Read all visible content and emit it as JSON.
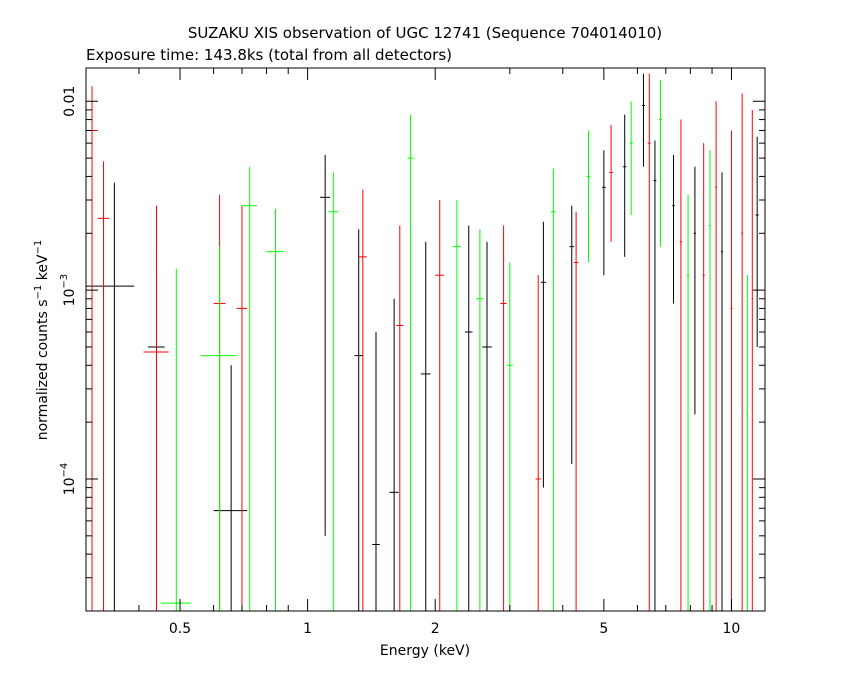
{
  "chart_data": {
    "type": "scatter",
    "title": "SUZAKU XIS observation of UGC 12741 (Sequence 704014010)",
    "subtitle": "Exposure time: 143.8ks (total from all detectors)",
    "xlabel": "Energy (keV)",
    "ylabel": "normalized counts s",
    "ylabel_parts": [
      "normalized counts s",
      "−1",
      " keV",
      "−1"
    ],
    "x_scale": "log",
    "y_scale": "log",
    "xlim": [
      0.3,
      12
    ],
    "ylim": [
      2e-05,
      0.015
    ],
    "x_ticks": [
      {
        "value": 0.5,
        "label": "0.5"
      },
      {
        "value": 1,
        "label": "1"
      },
      {
        "value": 2,
        "label": "2"
      },
      {
        "value": 5,
        "label": "5"
      },
      {
        "value": 10,
        "label": "10"
      }
    ],
    "y_ticks": [
      {
        "value": 0.0001,
        "base": "10",
        "exp": "−4",
        "text": ""
      },
      {
        "value": 0.001,
        "base": "10",
        "exp": "−3",
        "text": ""
      },
      {
        "value": 0.01,
        "base": "",
        "exp": "",
        "text": "0.01"
      }
    ],
    "series": [
      {
        "color": "#000000",
        "points": [
          {
            "x": 0.35,
            "y": 0.00105,
            "xl": 0.3,
            "xh": 0.39,
            "yl": 2e-05,
            "yh": 0.0037
          },
          {
            "x": 0.44,
            "y": 0.0005,
            "xl": 0.42,
            "xh": 0.46,
            "yl": 2e-05,
            "yh": 0.0017
          },
          {
            "x": 0.66,
            "y": 6.8e-05,
            "xl": 0.6,
            "xh": 0.72,
            "yl": 2e-05,
            "yh": 0.0004
          },
          {
            "x": 1.1,
            "y": 0.0031,
            "xl": 1.07,
            "xh": 1.13,
            "yl": 5e-05,
            "yh": 0.0052
          },
          {
            "x": 1.32,
            "y": 0.00045,
            "xl": 1.29,
            "xh": 1.35,
            "yl": 2e-05,
            "yh": 0.0021
          },
          {
            "x": 1.45,
            "y": 4.5e-05,
            "xl": 1.42,
            "xh": 1.48,
            "yl": 2e-05,
            "yh": 0.0006
          },
          {
            "x": 1.6,
            "y": 8.5e-05,
            "xl": 1.56,
            "xh": 1.64,
            "yl": 2e-05,
            "yh": 0.0009
          },
          {
            "x": 1.9,
            "y": 0.00036,
            "xl": 1.85,
            "xh": 1.95,
            "yl": 2e-05,
            "yh": 0.0018
          },
          {
            "x": 2.4,
            "y": 0.0006,
            "xl": 2.35,
            "xh": 2.45,
            "yl": 2e-05,
            "yh": 0.0022
          },
          {
            "x": 2.65,
            "y": 0.0005,
            "xl": 2.58,
            "xh": 2.72,
            "yl": 2e-05,
            "yh": 0.0018
          },
          {
            "x": 3.6,
            "y": 0.0011,
            "xl": 3.55,
            "xh": 3.65,
            "yl": 9e-05,
            "yh": 0.0023
          },
          {
            "x": 4.2,
            "y": 0.0017,
            "xl": 4.15,
            "xh": 4.25,
            "yl": 0.00012,
            "yh": 0.0028
          },
          {
            "x": 5.0,
            "y": 0.0035,
            "xl": 4.95,
            "xh": 5.05,
            "yl": 0.0012,
            "yh": 0.0055
          },
          {
            "x": 5.6,
            "y": 0.0045,
            "xl": 5.55,
            "xh": 5.65,
            "yl": 0.0015,
            "yh": 0.0085
          },
          {
            "x": 6.2,
            "y": 0.0095,
            "xl": 6.15,
            "xh": 6.25,
            "yl": 0.0045,
            "yh": 0.014
          },
          {
            "x": 6.6,
            "y": 0.0038,
            "xl": 6.55,
            "xh": 6.65,
            "yl": 2e-05,
            "yh": 0.0062
          },
          {
            "x": 7.3,
            "y": 0.0028,
            "xl": 7.25,
            "xh": 7.35,
            "yl": 0.00085,
            "yh": 0.0052
          },
          {
            "x": 8.2,
            "y": 0.002,
            "xl": 8.15,
            "xh": 8.25,
            "yl": 0.00022,
            "yh": 0.0045
          },
          {
            "x": 9.5,
            "y": 0.0016,
            "xl": 9.45,
            "xh": 9.55,
            "yl": 2e-05,
            "yh": 0.0042
          },
          {
            "x": 11.5,
            "y": 0.0025,
            "xl": 11.4,
            "xh": 11.6,
            "yl": 0.0005,
            "yh": 0.0065
          }
        ]
      },
      {
        "color": "#ff0000",
        "points": [
          {
            "x": 0.31,
            "y": 0.007,
            "xl": 0.3,
            "xh": 0.32,
            "yl": 2e-05,
            "yh": 0.012
          },
          {
            "x": 0.33,
            "y": 0.0024,
            "xl": 0.32,
            "xh": 0.34,
            "yl": 2e-05,
            "yh": 0.0048
          },
          {
            "x": 0.44,
            "y": 0.00047,
            "xl": 0.41,
            "xh": 0.47,
            "yl": 2e-05,
            "yh": 0.0028
          },
          {
            "x": 0.62,
            "y": 0.00085,
            "xl": 0.6,
            "xh": 0.64,
            "yl": 2e-05,
            "yh": 0.0032
          },
          {
            "x": 0.7,
            "y": 0.0008,
            "xl": 0.68,
            "xh": 0.72,
            "yl": 2e-05,
            "yh": 0.0028
          },
          {
            "x": 1.35,
            "y": 0.0015,
            "xl": 1.32,
            "xh": 1.38,
            "yl": 2e-05,
            "yh": 0.0034
          },
          {
            "x": 1.65,
            "y": 0.00065,
            "xl": 1.62,
            "xh": 1.68,
            "yl": 2e-05,
            "yh": 0.0022
          },
          {
            "x": 2.05,
            "y": 0.0012,
            "xl": 2.0,
            "xh": 2.1,
            "yl": 2e-05,
            "yh": 0.003
          },
          {
            "x": 2.9,
            "y": 0.00085,
            "xl": 2.85,
            "xh": 2.95,
            "yl": 2e-05,
            "yh": 0.0022
          },
          {
            "x": 3.5,
            "y": 0.0001,
            "xl": 3.45,
            "xh": 3.55,
            "yl": 2e-05,
            "yh": 0.0012
          },
          {
            "x": 4.3,
            "y": 0.0014,
            "xl": 4.25,
            "xh": 4.35,
            "yl": 2e-05,
            "yh": 0.0026
          },
          {
            "x": 5.2,
            "y": 0.0042,
            "xl": 5.15,
            "xh": 5.25,
            "yl": 0.0018,
            "yh": 0.0075
          },
          {
            "x": 6.4,
            "y": 0.006,
            "xl": 6.35,
            "xh": 6.45,
            "yl": 2e-05,
            "yh": 0.014
          },
          {
            "x": 7.6,
            "y": 0.0018,
            "xl": 7.55,
            "xh": 7.65,
            "yl": 2e-05,
            "yh": 0.008
          },
          {
            "x": 8.6,
            "y": 0.0012,
            "xl": 8.55,
            "xh": 8.65,
            "yl": 2e-05,
            "yh": 0.006
          },
          {
            "x": 9.2,
            "y": 0.0035,
            "xl": 9.15,
            "xh": 9.25,
            "yl": 2e-05,
            "yh": 0.01
          },
          {
            "x": 10.0,
            "y": 0.0008,
            "xl": 9.95,
            "xh": 10.05,
            "yl": 2e-05,
            "yh": 0.007
          },
          {
            "x": 10.6,
            "y": 0.002,
            "xl": 10.55,
            "xh": 10.65,
            "yl": 2e-05,
            "yh": 0.011
          },
          {
            "x": 11.2,
            "y": 0.0009,
            "xl": 11.15,
            "xh": 11.25,
            "yl": 2e-05,
            "yh": 0.009
          }
        ]
      },
      {
        "color": "#00ff00",
        "points": [
          {
            "x": 0.49,
            "y": 2.2e-05,
            "xl": 0.45,
            "xh": 0.53,
            "yl": 2e-05,
            "yh": 0.0013
          },
          {
            "x": 0.62,
            "y": 0.00045,
            "xl": 0.56,
            "xh": 0.68,
            "yl": 2e-05,
            "yh": 0.0017
          },
          {
            "x": 0.73,
            "y": 0.0028,
            "xl": 0.7,
            "xh": 0.76,
            "yl": 2e-05,
            "yh": 0.0045
          },
          {
            "x": 0.84,
            "y": 0.0016,
            "xl": 0.8,
            "xh": 0.88,
            "yl": 2e-05,
            "yh": 0.0027
          },
          {
            "x": 1.15,
            "y": 0.0026,
            "xl": 1.12,
            "xh": 1.18,
            "yl": 2e-05,
            "yh": 0.0042
          },
          {
            "x": 1.75,
            "y": 0.005,
            "xl": 1.72,
            "xh": 1.78,
            "yl": 2e-05,
            "yh": 0.0085
          },
          {
            "x": 2.25,
            "y": 0.0017,
            "xl": 2.2,
            "xh": 2.3,
            "yl": 2e-05,
            "yh": 0.003
          },
          {
            "x": 2.55,
            "y": 0.0009,
            "xl": 2.5,
            "xh": 2.6,
            "yl": 2e-05,
            "yh": 0.0021
          },
          {
            "x": 3.0,
            "y": 0.0004,
            "xl": 2.95,
            "xh": 3.05,
            "yl": 2e-05,
            "yh": 0.0014
          },
          {
            "x": 3.8,
            "y": 0.0026,
            "xl": 3.75,
            "xh": 3.85,
            "yl": 2e-05,
            "yh": 0.0044
          },
          {
            "x": 4.6,
            "y": 0.004,
            "xl": 4.55,
            "xh": 4.65,
            "yl": 0.0014,
            "yh": 0.007
          },
          {
            "x": 5.8,
            "y": 0.006,
            "xl": 5.75,
            "xh": 5.85,
            "yl": 0.0025,
            "yh": 0.01
          },
          {
            "x": 6.8,
            "y": 0.008,
            "xl": 6.75,
            "xh": 6.85,
            "yl": 0.0017,
            "yh": 0.013
          },
          {
            "x": 7.9,
            "y": 0.0012,
            "xl": 7.85,
            "xh": 7.95,
            "yl": 2e-05,
            "yh": 0.0032
          },
          {
            "x": 8.9,
            "y": 0.0022,
            "xl": 8.85,
            "xh": 8.95,
            "yl": 2e-05,
            "yh": 0.0055
          },
          {
            "x": 10.9,
            "y": 0.00022,
            "xl": 10.85,
            "xh": 10.95,
            "yl": 2e-05,
            "yh": 0.0012
          }
        ]
      }
    ]
  }
}
